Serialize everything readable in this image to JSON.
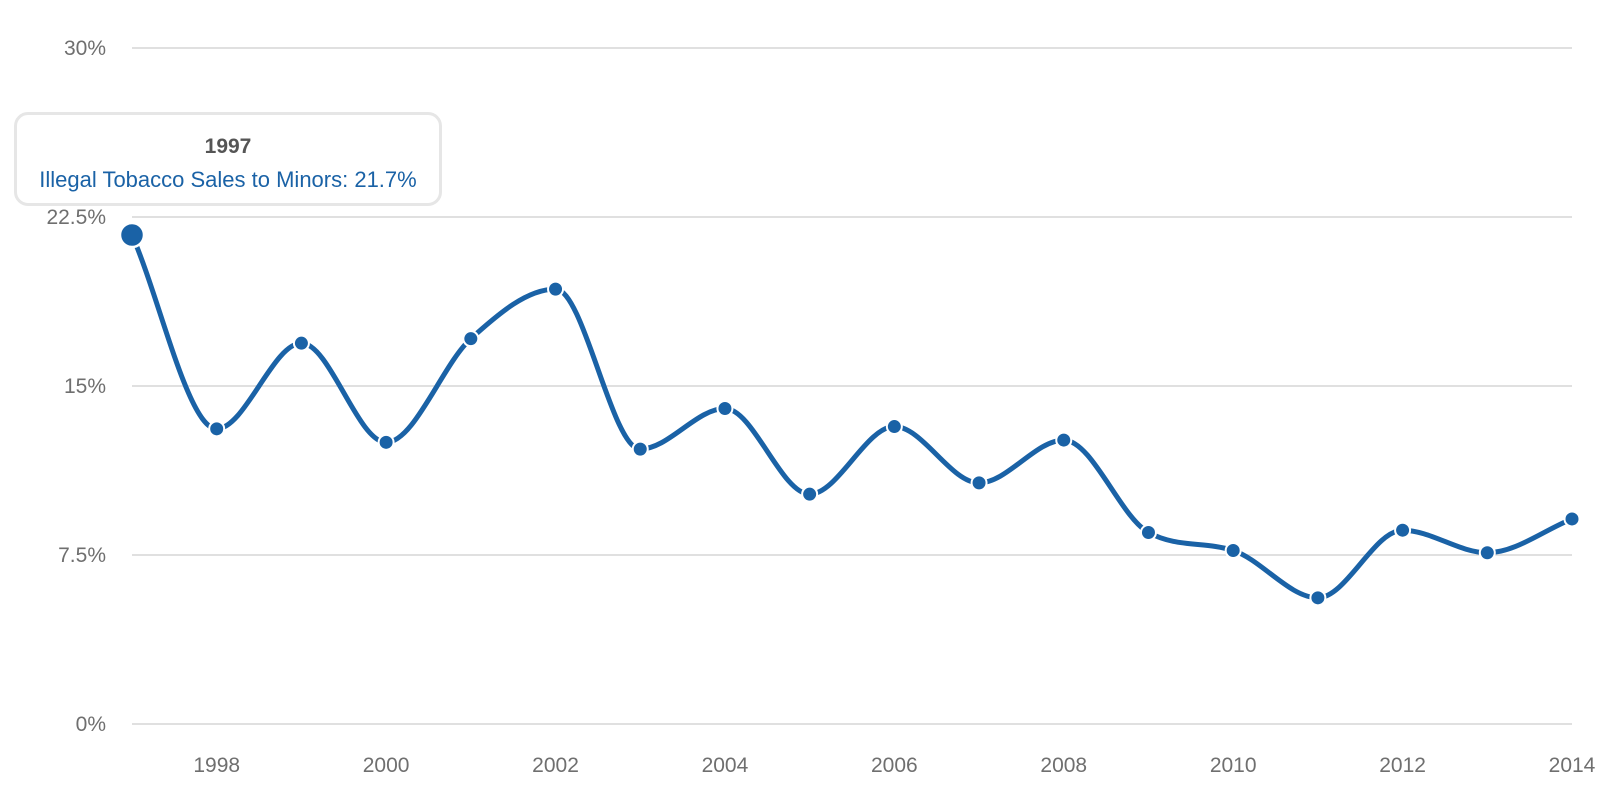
{
  "chart_data": {
    "type": "line",
    "title": "",
    "xlabel": "",
    "ylabel": "",
    "x": [
      1997,
      1998,
      1999,
      2000,
      2001,
      2002,
      2003,
      2004,
      2005,
      2006,
      2007,
      2008,
      2009,
      2010,
      2011,
      2012,
      2013,
      2014
    ],
    "x_ticks": [
      "1998",
      "2000",
      "2002",
      "2004",
      "2006",
      "2008",
      "2010",
      "2012",
      "2014"
    ],
    "y_ticks": [
      "0%",
      "7.5%",
      "15%",
      "22.5%",
      "30%"
    ],
    "ylim": [
      0,
      30
    ],
    "xlim": [
      1997,
      2014
    ],
    "grid": true,
    "series": [
      {
        "name": "Illegal Tobacco Sales to Minors",
        "color": "#1a62a6",
        "values": [
          21.7,
          13.1,
          16.9,
          12.5,
          17.1,
          19.3,
          12.2,
          14.0,
          10.2,
          13.2,
          10.7,
          12.6,
          8.5,
          7.7,
          5.6,
          8.6,
          7.6,
          9.1
        ]
      }
    ],
    "tooltip": {
      "title": "1997",
      "text": "Illegal Tobacco Sales to Minors: 21.7%"
    }
  }
}
